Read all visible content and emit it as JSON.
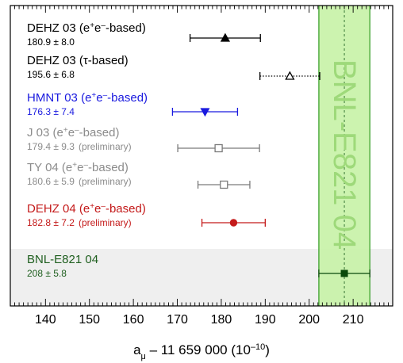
{
  "chart_data": {
    "type": "scatter",
    "title": "",
    "xlabel": "a",
    "xlabel_sub": "μ",
    "xlabel_rest": " – 11 659 000",
    "xlabel_unit_base": "(10",
    "xlabel_unit_exp": "–10",
    "xlabel_unit_close": ")",
    "xlim": [
      132,
      219
    ],
    "xticks": [
      140,
      150,
      160,
      170,
      180,
      190,
      200,
      210
    ],
    "grid": false,
    "band": {
      "label": "BNL-E821 04",
      "center": 208,
      "low": 202.2,
      "high": 213.8,
      "color": "#c6f2a6",
      "edge_color": "#2e9a1e",
      "label_color": "#9ed97a"
    },
    "measurements": [
      {
        "name_parts": [
          {
            "t": "DEHZ 03 (e"
          },
          {
            "t": "+",
            "sup": true
          },
          {
            "t": "e"
          },
          {
            "t": "–",
            "sup": true
          },
          {
            "t": "-based)"
          }
        ],
        "value_text": "180.9 ± 8.0",
        "note": "",
        "value": 180.9,
        "error": 8.0,
        "marker": "filled-triangle-up",
        "line": "solid",
        "color": "#000000",
        "text_color": "#000000"
      },
      {
        "name_parts": [
          {
            "t": "DEHZ 03 (τ-based)"
          }
        ],
        "value_text": "195.6 ± 6.8",
        "note": "",
        "value": 195.6,
        "error": 6.8,
        "marker": "open-triangle-up",
        "line": "dotted",
        "color": "#000000",
        "text_color": "#000000"
      },
      {
        "name_parts": [
          {
            "t": "HMNT 03 (e"
          },
          {
            "t": "+",
            "sup": true
          },
          {
            "t": "e"
          },
          {
            "t": "–",
            "sup": true
          },
          {
            "t": "-based)"
          }
        ],
        "value_text": "176.3 ± 7.4",
        "note": "",
        "value": 176.3,
        "error": 7.4,
        "marker": "filled-triangle-down",
        "line": "solid",
        "color": "#1a1adf",
        "text_color": "#1a1adf"
      },
      {
        "name_parts": [
          {
            "t": "J 03 (e"
          },
          {
            "t": "+",
            "sup": true
          },
          {
            "t": "e"
          },
          {
            "t": "–",
            "sup": true
          },
          {
            "t": "-based)"
          }
        ],
        "value_text": "179.4 ± 9.3",
        "note": "(preliminary)",
        "value": 179.4,
        "error": 9.3,
        "marker": "open-square",
        "line": "solid",
        "color": "#7a7a7a",
        "text_color": "#8c8c8c"
      },
      {
        "name_parts": [
          {
            "t": "TY 04 (e"
          },
          {
            "t": "+",
            "sup": true
          },
          {
            "t": "e"
          },
          {
            "t": "–",
            "sup": true
          },
          {
            "t": "-based)"
          }
        ],
        "value_text": "180.6 ± 5.9",
        "note": "(preliminary)",
        "value": 180.6,
        "error": 5.9,
        "marker": "open-square",
        "line": "solid",
        "color": "#7a7a7a",
        "text_color": "#8c8c8c"
      },
      {
        "name_parts": [
          {
            "t": "DEHZ 04 (e"
          },
          {
            "t": "+",
            "sup": true
          },
          {
            "t": "e"
          },
          {
            "t": "–",
            "sup": true
          },
          {
            "t": "-based)"
          }
        ],
        "value_text": "182.8 ± 7.2",
        "note": "(preliminary)",
        "value": 182.8,
        "error": 7.2,
        "marker": "filled-circle",
        "line": "solid",
        "color": "#c41a1a",
        "text_color": "#c41a1a"
      },
      {
        "name_parts": [
          {
            "t": "BNL-E821 04"
          }
        ],
        "value_text": "208 ± 5.8",
        "note": "",
        "value": 208,
        "error": 5.8,
        "marker": "filled-square",
        "line": "solid",
        "color": "#0b4a0b",
        "text_color": "#1f5f1f",
        "shaded_row": true
      }
    ]
  }
}
